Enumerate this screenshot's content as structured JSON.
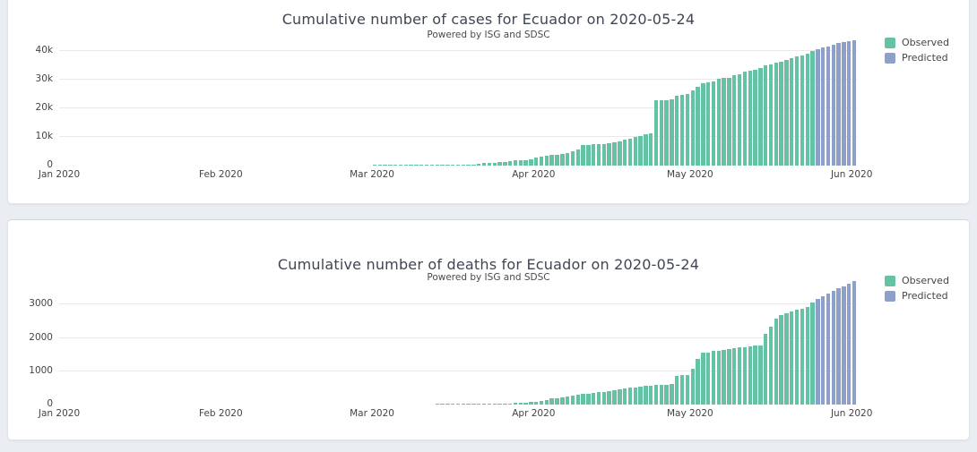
{
  "page": {
    "background_color": "#eaeef3",
    "card_color": "#ffffff"
  },
  "chart_data": [
    {
      "type": "bar",
      "title": "Cumulative number of cases for Ecuador on 2020-05-24",
      "subtitle": "Powered by ISG and SDSC",
      "ylabel": "",
      "xlabel": "",
      "ylim": [
        0,
        45000
      ],
      "grid": "horizontal",
      "legend_position": "top-right",
      "legend": [
        {
          "label": "Observed",
          "color": "#66c2a5"
        },
        {
          "label": "Predicted",
          "color": "#8da0cb"
        }
      ],
      "y_ticks": [
        {
          "label": "0",
          "value": 0
        },
        {
          "label": "10k",
          "value": 10000
        },
        {
          "label": "20k",
          "value": 20000
        },
        {
          "label": "30k",
          "value": 30000
        },
        {
          "label": "40k",
          "value": 40000
        }
      ],
      "x_ticks": [
        {
          "label": "Jan 2020",
          "day": 0
        },
        {
          "label": "Feb 2020",
          "day": 31
        },
        {
          "label": "Mar 2020",
          "day": 60
        },
        {
          "label": "Apr 2020",
          "day": 91
        },
        {
          "label": "May 2020",
          "day": 121
        },
        {
          "label": "Jun 2020",
          "day": 152
        }
      ],
      "series": [
        {
          "name": "Observed",
          "color": "#66c2a5",
          "start_date": "2020-03-01",
          "start_day": 60,
          "values": [
            6,
            6,
            7,
            10,
            13,
            13,
            13,
            14,
            15,
            15,
            17,
            17,
            23,
            28,
            37,
            58,
            111,
            199,
            367,
            426,
            506,
            789,
            981,
            1082,
            1173,
            1403,
            1595,
            1823,
            1924,
            1962,
            2240,
            2748,
            3163,
            3368,
            3646,
            3747,
            3995,
            4450,
            4965,
            5704,
            7161,
            7257,
            7466,
            7529,
            7603,
            7858,
            8225,
            8450,
            9022,
            9468,
            10128,
            10398,
            10850,
            11183,
            22719,
            22719,
            22719,
            23240,
            24258,
            24675,
            24934,
            26336,
            27464,
            28818,
            29071,
            29509,
            30247,
            30486,
            30502,
            31467,
            31881,
            32763,
            33182,
            33582,
            34151,
            34854,
            35306,
            35828,
            36258,
            36756,
            37355,
            37997,
            38571,
            39098,
            39994
          ]
        },
        {
          "name": "Predicted",
          "color": "#8da0cb",
          "start_date": "2020-05-25",
          "start_day": 145,
          "values": [
            40600,
            41200,
            41700,
            42200,
            42700,
            43100,
            43500,
            43900
          ]
        }
      ]
    },
    {
      "type": "bar",
      "title": "Cumulative number of deaths for Ecuador on 2020-05-24",
      "subtitle": "Powered by ISG and SDSC",
      "ylabel": "",
      "xlabel": "",
      "ylim": [
        0,
        3900
      ],
      "grid": "horizontal",
      "legend_position": "top-right",
      "legend": [
        {
          "label": "Observed",
          "color": "#66c2a5"
        },
        {
          "label": "Predicted",
          "color": "#8da0cb"
        }
      ],
      "y_ticks": [
        {
          "label": "0",
          "value": 0
        },
        {
          "label": "1000",
          "value": 1000
        },
        {
          "label": "2000",
          "value": 2000
        },
        {
          "label": "3000",
          "value": 3000
        }
      ],
      "x_ticks": [
        {
          "label": "Jan 2020",
          "day": 0
        },
        {
          "label": "Feb 2020",
          "day": 31
        },
        {
          "label": "Mar 2020",
          "day": 60
        },
        {
          "label": "Apr 2020",
          "day": 91
        },
        {
          "label": "May 2020",
          "day": 121
        },
        {
          "label": "Jun 2020",
          "day": 152
        }
      ],
      "series": [
        {
          "name": "Observed",
          "color": "#66c2a5",
          "start_date": "2020-03-13",
          "start_day": 72,
          "values": [
            2,
            2,
            2,
            2,
            2,
            2,
            3,
            5,
            7,
            10,
            14,
            18,
            27,
            34,
            36,
            48,
            58,
            60,
            75,
            93,
            120,
            145,
            180,
            191,
            220,
            242,
            272,
            297,
            315,
            333,
            355,
            369,
            388,
            403,
            421,
            456,
            474,
            507,
            520,
            537,
            560,
            576,
            580,
            587,
            593,
            610,
            871,
            883,
            900,
            1063,
            1371,
            1564,
            1569,
            1604,
            1618,
            1654,
            1669,
            1704,
            1717,
            1731,
            1757,
            1780,
            1782,
            2127,
            2338,
            2594,
            2688,
            2736,
            2799,
            2839,
            2888,
            2939,
            3056
          ]
        },
        {
          "name": "Predicted",
          "color": "#8da0cb",
          "start_date": "2020-05-25",
          "start_day": 145,
          "values": [
            3170,
            3250,
            3330,
            3410,
            3490,
            3560,
            3640,
            3720
          ]
        }
      ]
    }
  ]
}
